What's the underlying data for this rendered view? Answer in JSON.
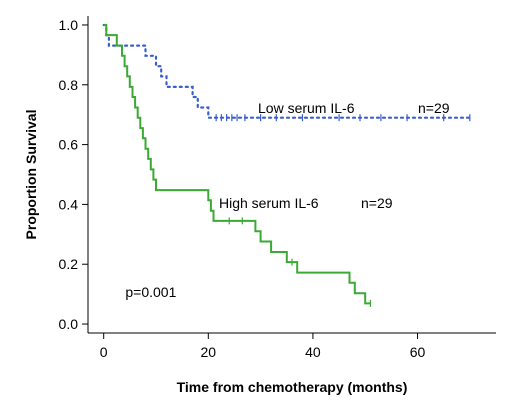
{
  "chart_data": {
    "type": "line",
    "subtype": "kaplan-meier survival curve",
    "title": "",
    "xlabel": "Time from chemotherapy (months)",
    "ylabel": "Proportion Survival",
    "xlim": [
      -3,
      75
    ],
    "ylim": [
      -0.03,
      1.03
    ],
    "x_ticks": [
      0,
      20,
      40,
      60
    ],
    "y_ticks": [
      0.0,
      0.2,
      0.4,
      0.6,
      0.8,
      1.0
    ],
    "y_tick_labels": [
      "0.0",
      "0.2",
      "0.4",
      "0.6",
      "0.8",
      "1.0"
    ],
    "grid": false,
    "series": [
      {
        "name": "Low serum IL-6",
        "n_label": "n=29",
        "color": "#3a5fcd",
        "line_style": "dotted",
        "steps": [
          [
            0,
            1.0
          ],
          [
            0.5,
            0.966
          ],
          [
            1.0,
            0.931
          ],
          [
            8.0,
            0.897
          ],
          [
            10.0,
            0.862
          ],
          [
            11.0,
            0.828
          ],
          [
            12.0,
            0.793
          ],
          [
            17.0,
            0.759
          ],
          [
            18.0,
            0.724
          ],
          [
            20.0,
            0.69
          ],
          [
            70.0,
            0.69
          ]
        ],
        "censored": [
          [
            21.5,
            0.69
          ],
          [
            22.5,
            0.69
          ],
          [
            23.5,
            0.69
          ],
          [
            24.5,
            0.69
          ],
          [
            25.5,
            0.69
          ],
          [
            27.0,
            0.69
          ],
          [
            30.0,
            0.69
          ],
          [
            33.0,
            0.69
          ],
          [
            38.0,
            0.69
          ],
          [
            45.0,
            0.69
          ],
          [
            49.0,
            0.69
          ],
          [
            53.0,
            0.69
          ],
          [
            58.0,
            0.69
          ],
          [
            65.0,
            0.69
          ],
          [
            70.0,
            0.69
          ]
        ]
      },
      {
        "name": "High serum IL-6",
        "n_label": "n=29",
        "color": "#3aaa35",
        "line_style": "solid",
        "steps": [
          [
            0,
            1.0
          ],
          [
            0.5,
            0.966
          ],
          [
            2.5,
            0.931
          ],
          [
            3.5,
            0.897
          ],
          [
            4.0,
            0.862
          ],
          [
            4.5,
            0.828
          ],
          [
            5.0,
            0.793
          ],
          [
            5.5,
            0.759
          ],
          [
            6.0,
            0.724
          ],
          [
            6.5,
            0.69
          ],
          [
            7.0,
            0.655
          ],
          [
            7.5,
            0.621
          ],
          [
            8.0,
            0.586
          ],
          [
            8.5,
            0.552
          ],
          [
            9.0,
            0.517
          ],
          [
            9.5,
            0.483
          ],
          [
            10.0,
            0.448
          ],
          [
            20.0,
            0.414
          ],
          [
            20.5,
            0.379
          ],
          [
            21.0,
            0.345
          ],
          [
            29.0,
            0.31
          ],
          [
            30.0,
            0.276
          ],
          [
            32.0,
            0.241
          ],
          [
            35.0,
            0.207
          ],
          [
            37.0,
            0.172
          ],
          [
            47.0,
            0.138
          ],
          [
            48.0,
            0.103
          ],
          [
            50.0,
            0.069
          ],
          [
            51.0,
            0.069
          ]
        ],
        "censored": [
          [
            24.0,
            0.345
          ],
          [
            26.5,
            0.345
          ],
          [
            36.0,
            0.207
          ],
          [
            51.0,
            0.069
          ]
        ]
      }
    ],
    "annotations": [
      {
        "text": "p=0.001",
        "x": 3,
        "y": 0.09
      }
    ]
  }
}
